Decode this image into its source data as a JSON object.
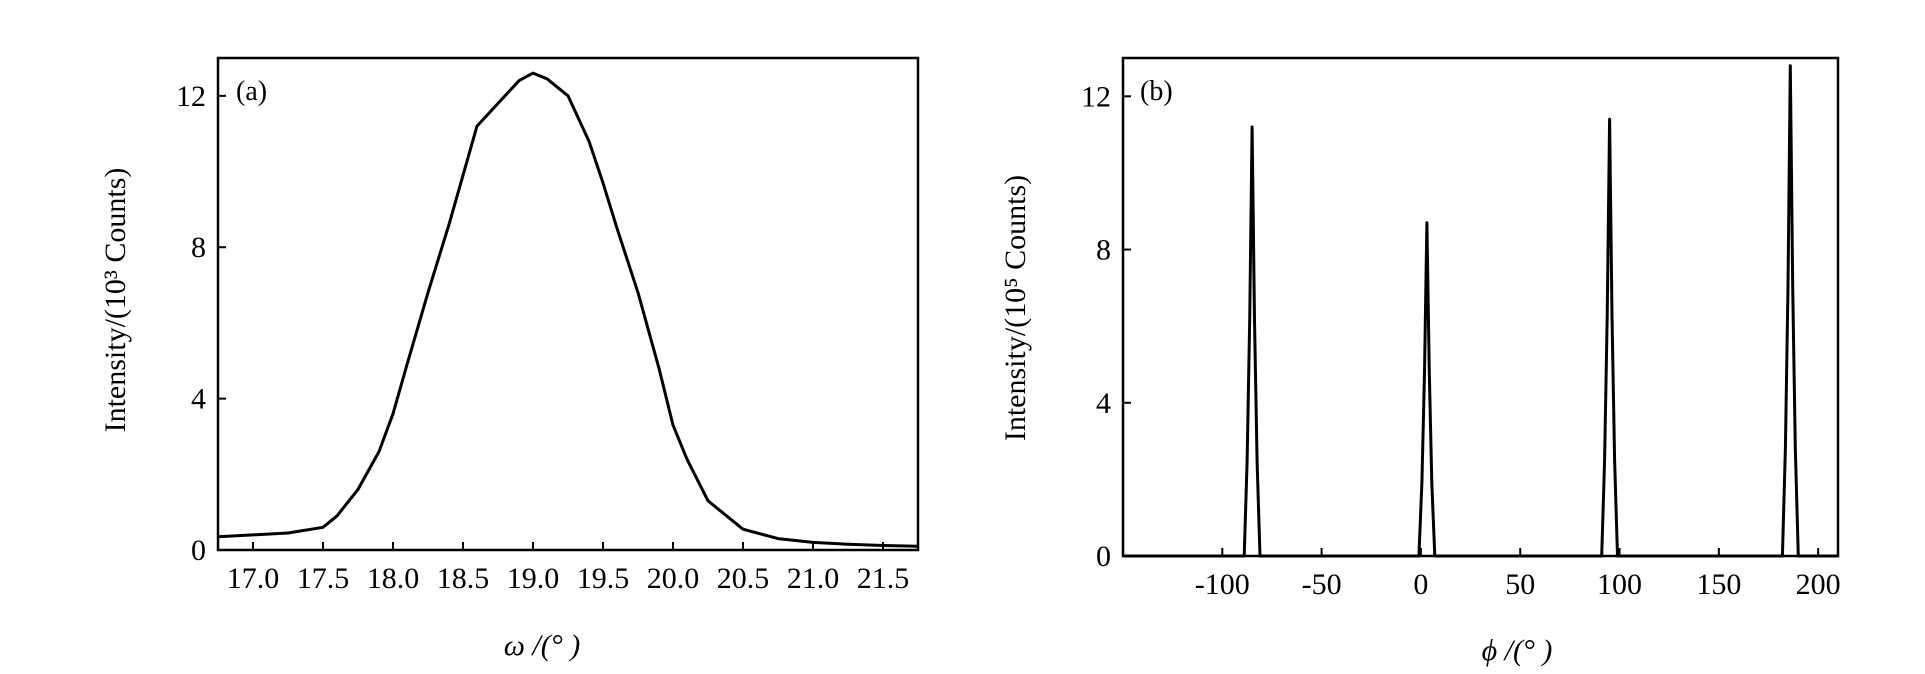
{
  "chart_data": [
    {
      "type": "line",
      "panel_label": "(a)",
      "xlabel": "ω /(° )",
      "ylabel": "Intensity/(10³ Counts)",
      "xlim": [
        16.75,
        21.75
      ],
      "ylim": [
        0,
        13
      ],
      "xticks": [
        17.0,
        17.5,
        18.0,
        18.5,
        19.0,
        19.5,
        20.0,
        20.5,
        21.0,
        21.5
      ],
      "xtick_labels": [
        "17.0",
        "17.5",
        "18.0",
        "18.5",
        "19.0",
        "19.5",
        "20.0",
        "20.5",
        "21.0",
        "21.5"
      ],
      "yticks": [
        0,
        4,
        8,
        12
      ],
      "ytick_labels": [
        "0",
        "4",
        "8",
        "12"
      ],
      "series": [
        {
          "x": [
            16.75,
            17.0,
            17.25,
            17.5,
            17.6,
            17.75,
            17.9,
            18.0,
            18.1,
            18.25,
            18.4,
            18.5,
            18.6,
            18.75,
            18.9,
            19.0,
            19.1,
            19.25,
            19.4,
            19.5,
            19.6,
            19.75,
            19.9,
            20.0,
            20.1,
            20.25,
            20.5,
            20.75,
            21.0,
            21.25,
            21.5,
            21.75
          ],
          "y": [
            0.35,
            0.4,
            0.45,
            0.6,
            0.9,
            1.6,
            2.6,
            3.6,
            4.9,
            6.8,
            8.6,
            9.9,
            11.2,
            11.8,
            12.4,
            12.6,
            12.45,
            12.0,
            10.8,
            9.7,
            8.5,
            6.8,
            4.8,
            3.3,
            2.4,
            1.3,
            0.55,
            0.3,
            0.2,
            0.15,
            0.12,
            0.1
          ]
        }
      ]
    },
    {
      "type": "line",
      "panel_label": "(b)",
      "xlabel": "ϕ /(° )",
      "ylabel": "Intensity/(10⁵ Counts)",
      "xlim": [
        -150,
        210
      ],
      "ylim": [
        0,
        13
      ],
      "xticks": [
        -100,
        -50,
        0,
        50,
        100,
        150,
        200
      ],
      "xtick_labels": [
        "-100",
        "-50",
        "0",
        "50",
        "100",
        "150",
        "200"
      ],
      "yticks": [
        0,
        4,
        8,
        12
      ],
      "ytick_labels": [
        "0",
        "4",
        "8",
        "12"
      ],
      "series": [
        {
          "peaks": [
            {
              "center": -85,
              "height": 11.2
            },
            {
              "center": 3,
              "height": 8.7
            },
            {
              "center": 95,
              "height": 11.4
            },
            {
              "center": 186,
              "height": 12.8
            }
          ]
        }
      ]
    }
  ]
}
